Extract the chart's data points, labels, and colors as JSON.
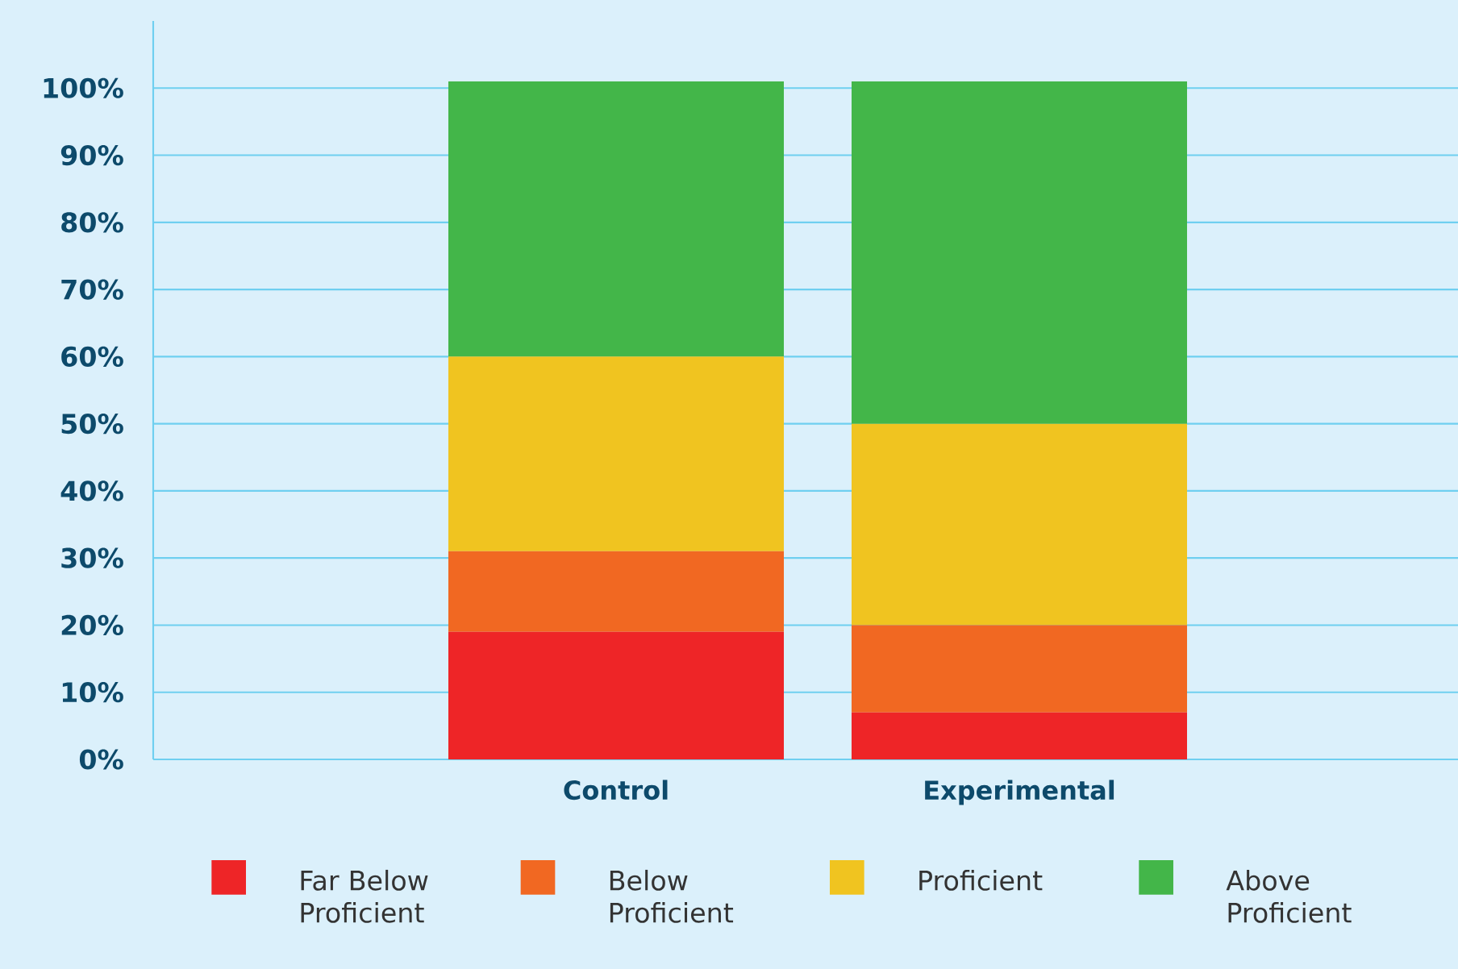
{
  "chart_data": {
    "type": "bar",
    "stacked": true,
    "categories": [
      "Control",
      "Experimental"
    ],
    "series": [
      {
        "name": "Far Below Proficient",
        "color": "#ee2527",
        "values": [
          19,
          7
        ]
      },
      {
        "name": "Below Proficient",
        "color": "#f16822",
        "values": [
          12,
          13
        ]
      },
      {
        "name": "Proficient",
        "color": "#f0c420",
        "values": [
          29,
          30
        ]
      },
      {
        "name": "Above Proficient",
        "color": "#43b649",
        "values": [
          41,
          51
        ]
      }
    ],
    "ylim": [
      0,
      110
    ],
    "yticks": [
      {
        "value": 0,
        "label": "0%"
      },
      {
        "value": 10,
        "label": "10%"
      },
      {
        "value": 20,
        "label": "20%"
      },
      {
        "value": 30,
        "label": "30%"
      },
      {
        "value": 40,
        "label": "40%"
      },
      {
        "value": 50,
        "label": "50%"
      },
      {
        "value": 60,
        "label": "60%"
      },
      {
        "value": 70,
        "label": "70%"
      },
      {
        "value": 80,
        "label": "80%"
      },
      {
        "value": 90,
        "label": "90%"
      },
      {
        "value": 100,
        "label": "100%"
      }
    ],
    "grid": "y",
    "legend": "bottom"
  }
}
